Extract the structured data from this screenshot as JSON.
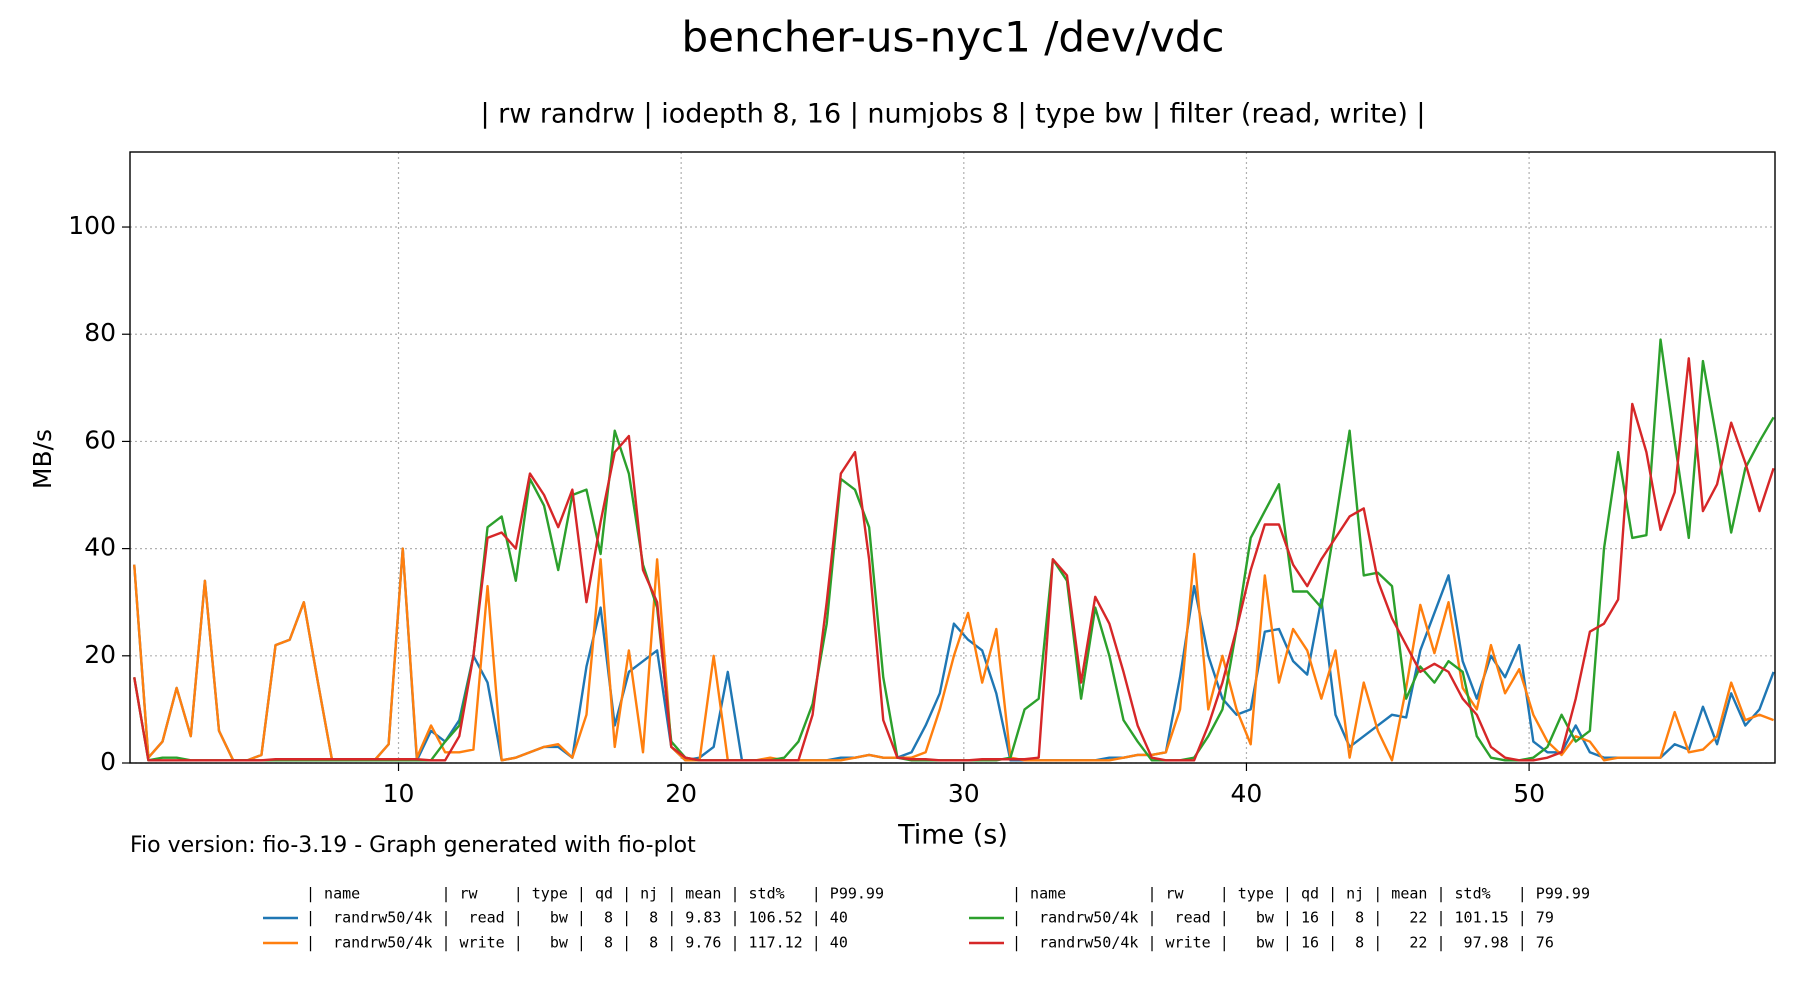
{
  "chart_data": {
    "type": "line",
    "title": "bencher-us-nyc1 /dev/vdc",
    "subtitle": "| rw randrw | iodepth 8, 16 | numjobs 8 | type bw | filter (read, write) |",
    "x_label": "Time (s)",
    "y_label": "MB/s",
    "footnote": "Fio version: fio-3.19 - Graph generated with fio-plot",
    "legend_headers": [
      "| name         | rw    | type | qd | nj | mean | std%   | P99.99",
      "| name         | rw    | type | qd | nj | mean | std%   | P99.99"
    ],
    "xlim": [
      0.5,
      58.7
    ],
    "ylim": [
      0,
      114
    ],
    "xticks": [
      10,
      20,
      30,
      40,
      50
    ],
    "yticks": [
      0,
      20,
      40,
      60,
      80,
      100
    ],
    "grid": true,
    "x": [
      0.65,
      1.15,
      1.65,
      2.15,
      2.65,
      3.15,
      3.65,
      4.15,
      4.65,
      5.15,
      5.65,
      6.15,
      6.65,
      7.15,
      7.65,
      8.15,
      8.65,
      9.15,
      9.65,
      10.15,
      10.65,
      11.15,
      11.65,
      12.15,
      12.65,
      13.15,
      13.65,
      14.15,
      14.65,
      15.15,
      15.65,
      16.15,
      16.65,
      17.15,
      17.65,
      18.15,
      18.65,
      19.15,
      19.65,
      20.15,
      20.65,
      21.15,
      21.65,
      22.15,
      22.65,
      23.15,
      23.65,
      24.15,
      24.65,
      25.15,
      25.65,
      26.15,
      26.65,
      27.15,
      27.65,
      28.15,
      28.65,
      29.15,
      29.65,
      30.15,
      30.65,
      31.15,
      31.65,
      32.15,
      32.65,
      33.15,
      33.65,
      34.15,
      34.65,
      35.15,
      35.65,
      36.15,
      36.65,
      37.15,
      37.65,
      38.15,
      38.65,
      39.15,
      39.65,
      40.15,
      40.65,
      41.15,
      41.65,
      42.15,
      42.65,
      43.15,
      43.65,
      44.15,
      44.65,
      45.15,
      45.65,
      46.15,
      46.65,
      47.15,
      47.65,
      48.15,
      48.65,
      49.15,
      49.65,
      50.15,
      50.65,
      51.15,
      51.65,
      52.15,
      52.65,
      53.15,
      53.65,
      54.15,
      54.65,
      55.15,
      55.65,
      56.15,
      56.65,
      57.15,
      57.65,
      58.15,
      58.65
    ],
    "series": [
      {
        "name": "|  randrw50/4k |  read |   bw |  8 |  8 | 9.83 | 106.52 | 40",
        "color": "#1f77b4",
        "values": [
          37,
          1,
          4,
          14,
          5,
          34,
          6,
          0.5,
          0.5,
          1.5,
          22,
          23,
          30,
          15,
          0.5,
          0.5,
          0.5,
          0.5,
          3.5,
          40,
          0.5,
          6,
          4,
          8,
          20,
          15,
          0.5,
          1,
          2,
          3,
          3,
          1,
          18,
          29,
          7,
          17,
          19,
          21,
          3,
          0.5,
          1,
          3,
          17,
          0.5,
          0.5,
          0.5,
          0.5,
          0.5,
          0.5,
          0.5,
          1,
          1,
          1.5,
          1,
          1,
          2,
          7,
          13,
          26,
          23,
          21,
          13,
          0.5,
          0.5,
          0.5,
          0.5,
          0.5,
          0.5,
          0.5,
          1,
          1,
          1.5,
          1.5,
          2,
          16,
          33,
          20,
          12,
          9,
          10,
          24.5,
          25,
          19,
          16.5,
          30.5,
          9,
          3,
          5,
          7,
          9,
          8.5,
          21,
          28,
          35,
          19,
          12,
          20,
          16,
          22,
          4,
          2,
          2,
          7,
          2,
          1,
          1,
          1,
          1,
          1,
          3.5,
          2.5,
          10.5,
          3.5,
          13,
          7,
          10,
          17
        ]
      },
      {
        "name": "|  randrw50/4k | write |   bw |  8 |  8 | 9.76 | 117.12 | 40",
        "color": "#ff7f0e",
        "values": [
          37,
          1,
          4,
          14,
          5,
          34,
          6,
          0.5,
          0.5,
          1.5,
          22,
          23,
          30,
          15,
          0.5,
          0.5,
          0.5,
          0.5,
          3.5,
          40,
          1,
          7,
          2,
          2,
          2.5,
          33,
          0.5,
          1,
          2,
          3,
          3.5,
          1,
          9,
          38,
          3,
          21,
          2,
          38,
          3,
          0.5,
          0.5,
          20,
          0.5,
          0.5,
          0.5,
          1,
          0.5,
          0.5,
          0.5,
          0.5,
          0.5,
          1,
          1.5,
          1,
          1,
          1,
          2,
          10,
          20,
          28,
          15,
          25,
          1,
          0.5,
          0.5,
          0.5,
          0.5,
          0.5,
          0.5,
          0.5,
          1,
          1.5,
          1.5,
          2,
          10,
          39,
          10,
          20,
          10,
          3.5,
          35,
          15,
          25,
          21,
          12,
          21,
          1,
          15,
          6,
          0.5,
          14,
          29.5,
          20.5,
          30,
          14,
          10,
          22,
          13,
          17.5,
          9,
          4,
          1.5,
          5,
          4,
          0.5,
          1,
          1,
          1,
          1,
          9.5,
          2,
          2.5,
          5,
          15,
          8,
          9,
          8
        ]
      },
      {
        "name": "|  randrw50/4k |  read |   bw | 16 |  8 |   22 | 101.15 | 79",
        "color": "#2ca02c",
        "values": [
          16,
          0.5,
          1,
          1,
          0.5,
          0.5,
          0.5,
          0.5,
          0.5,
          0.5,
          0.5,
          0.5,
          0.5,
          0.5,
          0.5,
          0.5,
          0.5,
          0.5,
          0.5,
          0.5,
          0.5,
          0.5,
          4,
          7,
          20,
          44,
          46,
          34,
          53,
          48,
          36,
          50,
          51,
          39,
          62,
          54,
          37,
          29,
          4,
          1,
          0.5,
          0.5,
          0.5,
          0.5,
          0.5,
          0.5,
          1,
          4,
          11,
          26,
          53,
          51,
          44,
          16,
          1,
          0.5,
          0.5,
          0.5,
          0.5,
          0.5,
          0.5,
          0.5,
          1,
          10,
          12,
          38,
          34,
          12,
          29,
          20,
          8,
          4,
          0.5,
          0.5,
          0.5,
          1,
          5,
          10,
          25,
          42,
          47,
          52,
          32,
          32,
          29,
          45,
          62,
          35,
          35.5,
          33,
          12,
          18,
          15,
          19,
          17,
          5,
          1,
          0.5,
          0.5,
          1,
          3,
          9,
          4,
          6,
          40,
          58,
          42,
          42.5,
          79,
          60,
          42,
          75,
          60,
          43,
          55,
          60,
          64.5
        ]
      },
      {
        "name": "|  randrw50/4k | write |   bw | 16 |  8 |   22 |  97.98 | 76",
        "color": "#d62728",
        "values": [
          16,
          0.5,
          0.5,
          0.5,
          0.5,
          0.5,
          0.5,
          0.5,
          0.5,
          0.5,
          0.7,
          0.7,
          0.7,
          0.7,
          0.7,
          0.7,
          0.7,
          0.7,
          0.7,
          0.7,
          0.7,
          0.5,
          0.5,
          5,
          20,
          42,
          43,
          40,
          54,
          50,
          44,
          51,
          30,
          45,
          58,
          61,
          36,
          30,
          3,
          1,
          0.5,
          0.5,
          0.5,
          0.5,
          0.5,
          0.5,
          0.5,
          0.5,
          9,
          30,
          54,
          58,
          38,
          8,
          1,
          0.7,
          0.7,
          0.5,
          0.5,
          0.5,
          0.7,
          0.7,
          0.7,
          0.7,
          1,
          38,
          35,
          15,
          31,
          26,
          17,
          7,
          1,
          0.5,
          0.5,
          0.5,
          7,
          15,
          25,
          36,
          44.5,
          44.5,
          37,
          33,
          38,
          42,
          46,
          47.5,
          34,
          27,
          22,
          17,
          18.5,
          17,
          12,
          9,
          3,
          1,
          0.5,
          0.5,
          1,
          2,
          12,
          24.5,
          26,
          30.5,
          67,
          58,
          43.5,
          50.5,
          75.5,
          47,
          52,
          63.5,
          56,
          47,
          55
        ]
      }
    ]
  }
}
